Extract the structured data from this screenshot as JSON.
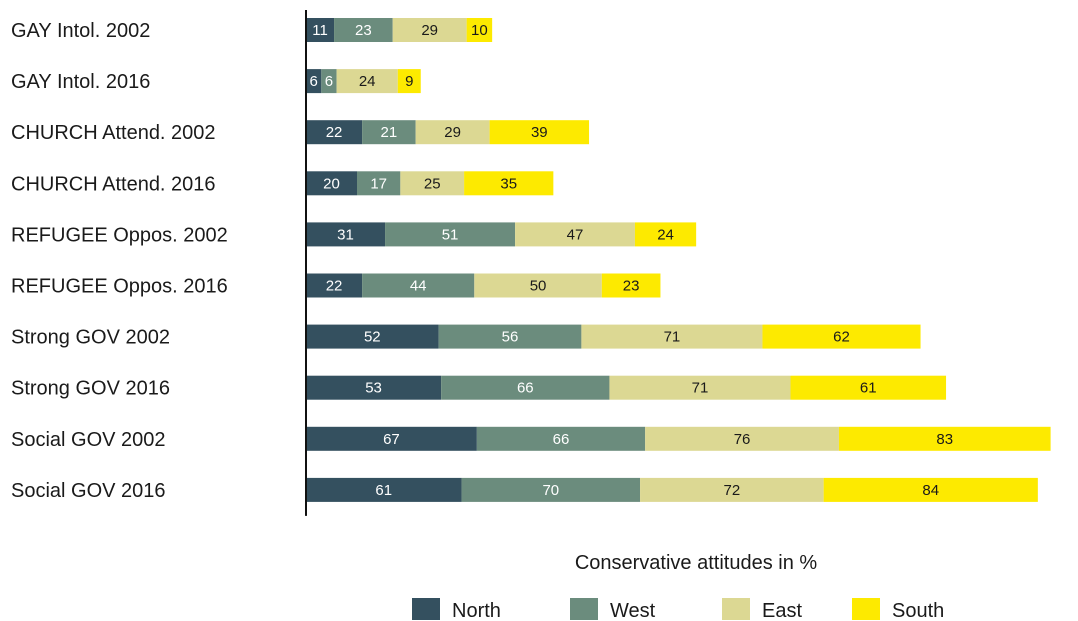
{
  "chart_data": {
    "type": "bar",
    "orientation": "horizontal",
    "stacked": true,
    "categories": [
      "GAY Intol. 2002",
      "GAY Intol. 2016",
      "CHURCH Attend. 2002",
      "CHURCH Attend. 2016",
      "REFUGEE Oppos. 2002",
      "REFUGEE Oppos. 2016",
      "Strong GOV 2002",
      "Strong GOV 2016",
      "Social GOV 2002",
      "Social GOV 2016"
    ],
    "series": [
      {
        "name": "North",
        "color": "#34505f",
        "values": [
          11,
          6,
          22,
          20,
          31,
          22,
          52,
          53,
          67,
          61
        ]
      },
      {
        "name": "West",
        "color": "#6b8c7d",
        "values": [
          23,
          6,
          21,
          17,
          51,
          44,
          56,
          66,
          66,
          70
        ]
      },
      {
        "name": "East",
        "color": "#dcd893",
        "values": [
          29,
          24,
          29,
          25,
          47,
          50,
          71,
          71,
          76,
          72
        ]
      },
      {
        "name": "South",
        "color": "#fdea00",
        "values": [
          10,
          9,
          39,
          35,
          24,
          23,
          62,
          61,
          83,
          84
        ]
      }
    ],
    "xlabel": "Conservative attitudes in %",
    "ylabel": "",
    "legend_position": "bottom-center",
    "grid": false
  }
}
